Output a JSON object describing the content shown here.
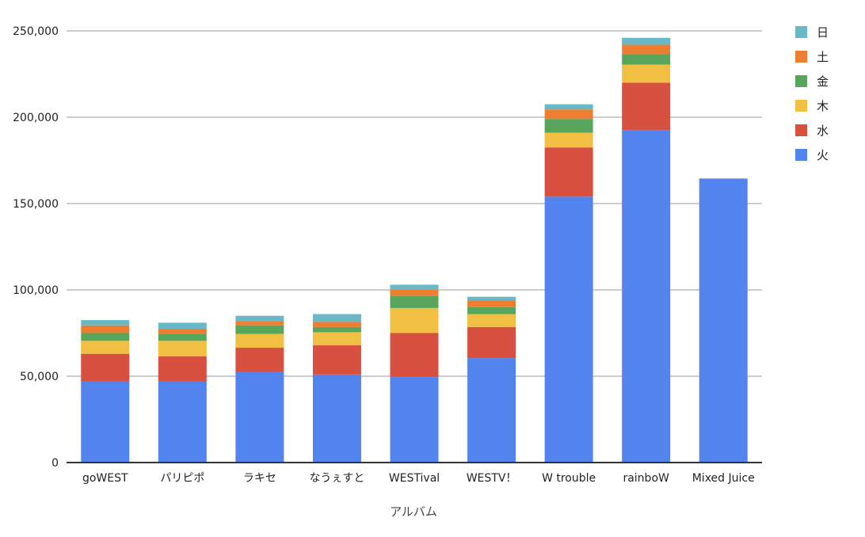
{
  "chart_data": {
    "type": "bar",
    "stacked": true,
    "xlabel": "アルバム",
    "ylabel": "",
    "ylim": [
      0,
      250000
    ],
    "yticks": [
      0,
      50000,
      100000,
      150000,
      200000,
      250000
    ],
    "ytick_labels": [
      "0",
      "50,000",
      "100,000",
      "150,000",
      "200,000",
      "250,000"
    ],
    "grid": true,
    "legend_position": "right",
    "categories": [
      "goWEST",
      "パリピポ",
      "ラキセ",
      "なうぇすと",
      "WESTival",
      "WESTV！",
      "W trouble",
      "rainboW",
      "Mixed Juice"
    ],
    "series": [
      {
        "name": "火",
        "color": "#5384ed",
        "values": [
          47000,
          47000,
          52500,
          51000,
          49500,
          60500,
          154000,
          192500,
          164500
        ]
      },
      {
        "name": "水",
        "color": "#d85140",
        "values": [
          16000,
          14500,
          14000,
          17000,
          25500,
          18000,
          28500,
          27500,
          0
        ]
      },
      {
        "name": "木",
        "color": "#f1bf42",
        "values": [
          7500,
          9000,
          8000,
          7500,
          14500,
          7500,
          8500,
          10500,
          0
        ]
      },
      {
        "name": "金",
        "color": "#58a55c",
        "values": [
          4500,
          4000,
          5000,
          3000,
          7000,
          4000,
          8000,
          6000,
          0
        ]
      },
      {
        "name": "土",
        "color": "#ed7d31",
        "values": [
          4500,
          3000,
          2500,
          3000,
          3500,
          4000,
          5500,
          5500,
          0
        ]
      },
      {
        "name": "日",
        "color": "#68b8c6",
        "values": [
          3000,
          3500,
          3000,
          4500,
          3000,
          2000,
          3000,
          4000,
          0
        ]
      }
    ]
  }
}
